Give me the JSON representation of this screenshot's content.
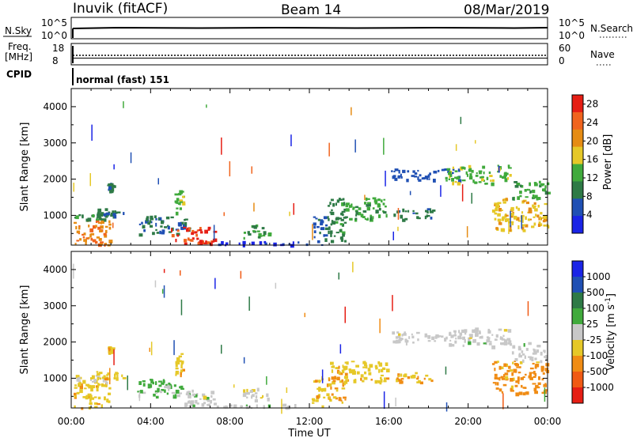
{
  "header": {
    "station": "Inuvik (fitACF)",
    "beam": "Beam 14",
    "date": "08/Mar/2019"
  },
  "top_panels": {
    "nsky_label": "N.Sky",
    "nsky_ticks": [
      "10^5",
      "10^0"
    ],
    "nsearch_label": "N.Search",
    "nsearch_ticks": [
      "10^5",
      "10^0"
    ],
    "freq_label_1": "Freq.",
    "freq_label_2": "[MHz]",
    "freq_ticks": [
      "18",
      "8"
    ],
    "nave_label": "Nave",
    "nave_ticks": [
      "60",
      "0"
    ],
    "cpid_label": "CPID",
    "cpid_value": "normal (fast) 151"
  },
  "chart_data": [
    {
      "type": "heatmap",
      "title": "",
      "xlabel": "",
      "ylabel": "Slant Range [km]",
      "x_ticks": [
        "00:00",
        "04:00",
        "08:00",
        "12:00",
        "16:00",
        "20:00",
        "00:00"
      ],
      "x_range_hours": [
        0,
        24
      ],
      "y_ticks": [
        "1000",
        "2000",
        "3000",
        "4000"
      ],
      "ylim": [
        180,
        4500
      ],
      "colorbar": {
        "label": "Power [dB]",
        "ticks": [
          "4",
          "8",
          "12",
          "16",
          "20",
          "24",
          "28"
        ],
        "range": [
          0,
          30
        ],
        "colors": [
          "#1a24e6",
          "#2050b4",
          "#2e7a46",
          "#40aa3c",
          "#e6c828",
          "#e68c14",
          "#f0641e",
          "#e61e14"
        ]
      },
      "regions": [
        {
          "t": [
            0.1,
            1.9
          ],
          "r": [
            200,
            900
          ],
          "value": 22
        },
        {
          "t": [
            0.1,
            1.9
          ],
          "r": [
            900,
            1100
          ],
          "value": 10
        },
        {
          "t": [
            1.2,
            2.6
          ],
          "r": [
            1000,
            1200
          ],
          "value": 8
        },
        {
          "t": [
            1.8,
            2.1
          ],
          "r": [
            1700,
            1900
          ],
          "value": 8
        },
        {
          "t": [
            3.3,
            5.9
          ],
          "r": [
            500,
            1000
          ],
          "value": 8
        },
        {
          "t": [
            5.0,
            7.2
          ],
          "r": [
            250,
            700
          ],
          "value": 27
        },
        {
          "t": [
            5.2,
            5.6
          ],
          "r": [
            1100,
            1700
          ],
          "value": 14
        },
        {
          "t": [
            7.2,
            12.0
          ],
          "r": [
            200,
            300
          ],
          "value": 4
        },
        {
          "t": [
            8.6,
            10.0
          ],
          "r": [
            400,
            750
          ],
          "value": 12
        },
        {
          "t": [
            12.1,
            12.8
          ],
          "r": [
            200,
            1000
          ],
          "value": 6
        },
        {
          "t": [
            12.8,
            13.8
          ],
          "r": [
            300,
            1500
          ],
          "value": 10
        },
        {
          "t": [
            13.7,
            15.9
          ],
          "r": [
            900,
            1500
          ],
          "value": 12
        },
        {
          "t": [
            16.2,
            18.2
          ],
          "r": [
            900,
            1200
          ],
          "value": 8
        },
        {
          "t": [
            16.1,
            19.6
          ],
          "r": [
            2000,
            2300
          ],
          "value": 6
        },
        {
          "t": [
            18.8,
            22.1
          ],
          "r": [
            1900,
            2400
          ],
          "value": 14
        },
        {
          "t": [
            21.2,
            24.0
          ],
          "r": [
            600,
            1500
          ],
          "value": 18
        },
        {
          "t": [
            22.2,
            24.0
          ],
          "r": [
            1500,
            2000
          ],
          "value": 12
        }
      ]
    },
    {
      "type": "heatmap",
      "title": "",
      "xlabel": "Time UT",
      "ylabel": "Slant Range [km]",
      "x_ticks": [
        "00:00",
        "04:00",
        "08:00",
        "12:00",
        "16:00",
        "20:00",
        "00:00"
      ],
      "x_range_hours": [
        0,
        24
      ],
      "y_ticks": [
        "1000",
        "2000",
        "3000",
        "4000"
      ],
      "ylim": [
        180,
        4500
      ],
      "colorbar": {
        "label": "Velocity [m s^-1]",
        "ticks": [
          "1000",
          "500",
          "100",
          "25",
          "-25",
          "-100",
          "-500",
          "-1000"
        ],
        "range": [
          -1200,
          1200
        ],
        "colors": [
          "#1a24e6",
          "#2050b4",
          "#2e7a46",
          "#40aa3c",
          "#c8c8c8",
          "#e6c828",
          "#f08c14",
          "#f05a14",
          "#e61e14"
        ]
      },
      "regions": [
        {
          "t": [
            0.1,
            1.9
          ],
          "r": [
            200,
            900
          ],
          "value": -300
        },
        {
          "t": [
            0.1,
            1.9
          ],
          "r": [
            900,
            1100
          ],
          "value": -150
        },
        {
          "t": [
            1.2,
            2.6
          ],
          "r": [
            1000,
            1200
          ],
          "value": -300
        },
        {
          "t": [
            1.8,
            2.1
          ],
          "r": [
            1700,
            1900
          ],
          "value": -300
        },
        {
          "t": [
            3.3,
            5.9
          ],
          "r": [
            500,
            1000
          ],
          "value": 200
        },
        {
          "t": [
            5.0,
            7.2
          ],
          "r": [
            250,
            700
          ],
          "value": 0
        },
        {
          "t": [
            5.2,
            5.6
          ],
          "r": [
            1100,
            1700
          ],
          "value": -300
        },
        {
          "t": [
            7.2,
            12.0
          ],
          "r": [
            200,
            300
          ],
          "value": 0
        },
        {
          "t": [
            8.6,
            10.0
          ],
          "r": [
            400,
            750
          ],
          "value": -50
        },
        {
          "t": [
            12.1,
            12.8
          ],
          "r": [
            200,
            1000
          ],
          "value": -300
        },
        {
          "t": [
            12.8,
            13.8
          ],
          "r": [
            300,
            1500
          ],
          "value": -400
        },
        {
          "t": [
            13.7,
            15.9
          ],
          "r": [
            900,
            1500
          ],
          "value": -300
        },
        {
          "t": [
            16.2,
            18.2
          ],
          "r": [
            900,
            1200
          ],
          "value": -400
        },
        {
          "t": [
            16.1,
            19.6
          ],
          "r": [
            2000,
            2300
          ],
          "value": 0
        },
        {
          "t": [
            18.8,
            22.1
          ],
          "r": [
            1900,
            2400
          ],
          "value": 0
        },
        {
          "t": [
            21.2,
            24.0
          ],
          "r": [
            600,
            1500
          ],
          "value": -500
        },
        {
          "t": [
            22.2,
            24.0
          ],
          "r": [
            1500,
            2000
          ],
          "value": 0
        }
      ]
    }
  ]
}
